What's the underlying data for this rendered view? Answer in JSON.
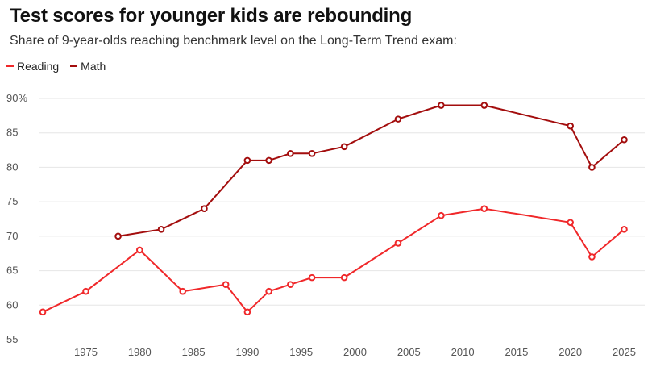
{
  "title": "Test scores for younger kids are rebounding",
  "subtitle": "Share of 9-year-olds reaching benchmark level on the Long-Term Trend exam:",
  "colors": {
    "reading": "#f0282a",
    "math": "#a30d0d",
    "grid": "#e6e6e6",
    "marker_fill": "#ffffff"
  },
  "chart_data": {
    "type": "line",
    "title": "Test scores for younger kids are rebounding",
    "subtitle": "Share of 9-year-olds reaching benchmark level on the Long-Term Trend exam:",
    "xlabel": "",
    "ylabel": "",
    "xlim": [
      1970,
      2025
    ],
    "ylim": [
      55,
      90
    ],
    "x_ticks": [
      1975,
      1980,
      1985,
      1990,
      1995,
      2000,
      2005,
      2010,
      2015,
      2020,
      2025
    ],
    "y_ticks": [
      55,
      60,
      65,
      70,
      75,
      80,
      85,
      90
    ],
    "y_tick_labels": [
      "55",
      "60",
      "65",
      "70",
      "75",
      "80",
      "85",
      "90%"
    ],
    "grid": true,
    "legend": "top-left",
    "series": [
      {
        "name": "Reading",
        "key": "reading",
        "x": [
          1971,
          1975,
          1980,
          1984,
          1988,
          1990,
          1992,
          1994,
          1996,
          1999,
          2004,
          2008,
          2012,
          2020,
          2022,
          2025
        ],
        "y": [
          59,
          62,
          68,
          62,
          63,
          59,
          62,
          63,
          64,
          64,
          69,
          73,
          74,
          72,
          67,
          71
        ]
      },
      {
        "name": "Math",
        "key": "math",
        "x": [
          1978,
          1982,
          1986,
          1990,
          1992,
          1994,
          1996,
          1999,
          2004,
          2008,
          2012,
          2020,
          2022,
          2025
        ],
        "y": [
          70,
          71,
          74,
          81,
          81,
          82,
          82,
          83,
          87,
          89,
          89,
          86,
          80,
          84
        ]
      }
    ]
  }
}
